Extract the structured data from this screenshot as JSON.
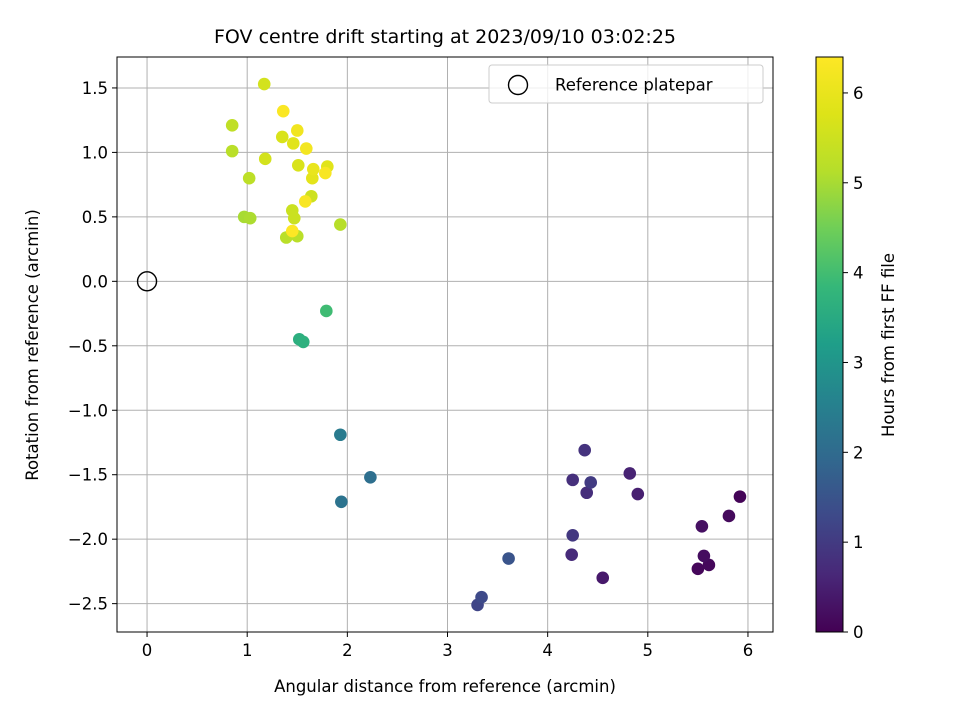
{
  "chart_data": {
    "type": "scatter",
    "title": "FOV centre drift starting at 2023/09/10 03:02:25",
    "xlabel": "Angular distance from reference (arcmin)",
    "ylabel": "Rotation from reference (arcmin)",
    "xlim": [
      -0.3,
      6.25
    ],
    "ylim": [
      -2.72,
      1.74
    ],
    "xticks": [
      0,
      1,
      2,
      3,
      4,
      5,
      6
    ],
    "xtick_labels": [
      "0",
      "1",
      "2",
      "3",
      "4",
      "5",
      "6"
    ],
    "yticks": [
      -2.5,
      -2.0,
      -1.5,
      -1.0,
      -0.5,
      0.0,
      0.5,
      1.0,
      1.5
    ],
    "ytick_labels": [
      "−2.5",
      "−2.0",
      "−1.5",
      "−1.0",
      "−0.5",
      "0.0",
      "0.5",
      "1.0",
      "1.5"
    ],
    "grid": true,
    "legend": {
      "position": "top-right",
      "entries": [
        "Reference platepar"
      ]
    },
    "reference_point": {
      "name": "Reference platepar",
      "x": 0,
      "y": 0
    },
    "colorbar": {
      "label": "Hours from first FF file",
      "colormap": "viridis",
      "range": [
        0,
        6.4
      ],
      "ticks": [
        0,
        1,
        2,
        3,
        4,
        5,
        6
      ],
      "tick_labels": [
        "0",
        "1",
        "2",
        "3",
        "4",
        "5",
        "6"
      ]
    },
    "points": [
      {
        "x": 5.92,
        "y": -1.67,
        "t": 0.05
      },
      {
        "x": 5.5,
        "y": -2.23,
        "t": 0.1
      },
      {
        "x": 5.61,
        "y": -2.2,
        "t": 0.12
      },
      {
        "x": 5.81,
        "y": -1.82,
        "t": 0.15
      },
      {
        "x": 5.56,
        "y": -2.13,
        "t": 0.2
      },
      {
        "x": 5.54,
        "y": -1.9,
        "t": 0.25
      },
      {
        "x": 4.55,
        "y": -2.3,
        "t": 0.4
      },
      {
        "x": 4.9,
        "y": -1.65,
        "t": 0.5
      },
      {
        "x": 4.82,
        "y": -1.49,
        "t": 0.55
      },
      {
        "x": 4.24,
        "y": -2.12,
        "t": 0.7
      },
      {
        "x": 4.39,
        "y": -1.64,
        "t": 0.75
      },
      {
        "x": 4.25,
        "y": -1.54,
        "t": 0.8
      },
      {
        "x": 4.37,
        "y": -1.31,
        "t": 0.85
      },
      {
        "x": 4.25,
        "y": -1.97,
        "t": 0.95
      },
      {
        "x": 4.43,
        "y": -1.56,
        "t": 1.0
      },
      {
        "x": 3.3,
        "y": -2.51,
        "t": 1.2
      },
      {
        "x": 3.34,
        "y": -2.45,
        "t": 1.3
      },
      {
        "x": 3.61,
        "y": -2.15,
        "t": 1.5
      },
      {
        "x": 2.23,
        "y": -1.52,
        "t": 2.1
      },
      {
        "x": 1.94,
        "y": -1.71,
        "t": 2.2
      },
      {
        "x": 1.93,
        "y": -1.19,
        "t": 2.4
      },
      {
        "x": 1.52,
        "y": -0.45,
        "t": 3.6
      },
      {
        "x": 1.56,
        "y": -0.47,
        "t": 3.65
      },
      {
        "x": 1.79,
        "y": -0.23,
        "t": 3.95
      },
      {
        "x": 0.97,
        "y": 0.5,
        "t": 5.0
      },
      {
        "x": 1.03,
        "y": 0.49,
        "t": 5.05
      },
      {
        "x": 1.39,
        "y": 0.34,
        "t": 5.2
      },
      {
        "x": 1.5,
        "y": 0.35,
        "t": 5.2
      },
      {
        "x": 1.93,
        "y": 0.44,
        "t": 5.15
      },
      {
        "x": 0.85,
        "y": 1.01,
        "t": 5.2
      },
      {
        "x": 0.85,
        "y": 1.21,
        "t": 5.3
      },
      {
        "x": 1.02,
        "y": 0.8,
        "t": 5.25
      },
      {
        "x": 1.47,
        "y": 0.49,
        "t": 5.45
      },
      {
        "x": 1.45,
        "y": 0.55,
        "t": 5.45
      },
      {
        "x": 1.64,
        "y": 0.66,
        "t": 5.5
      },
      {
        "x": 1.18,
        "y": 0.95,
        "t": 5.6
      },
      {
        "x": 1.17,
        "y": 1.53,
        "t": 5.6
      },
      {
        "x": 1.35,
        "y": 1.12,
        "t": 5.7
      },
      {
        "x": 1.51,
        "y": 0.9,
        "t": 5.7
      },
      {
        "x": 1.46,
        "y": 1.07,
        "t": 5.85
      },
      {
        "x": 1.8,
        "y": 0.89,
        "t": 5.85
      },
      {
        "x": 1.65,
        "y": 0.8,
        "t": 5.9
      },
      {
        "x": 1.66,
        "y": 0.87,
        "t": 6.0
      },
      {
        "x": 1.5,
        "y": 1.17,
        "t": 6.15
      },
      {
        "x": 1.59,
        "y": 1.03,
        "t": 6.2
      },
      {
        "x": 1.78,
        "y": 0.84,
        "t": 6.3
      },
      {
        "x": 1.58,
        "y": 0.62,
        "t": 6.3
      },
      {
        "x": 1.36,
        "y": 1.32,
        "t": 6.35
      },
      {
        "x": 1.45,
        "y": 0.39,
        "t": 6.4
      }
    ]
  }
}
